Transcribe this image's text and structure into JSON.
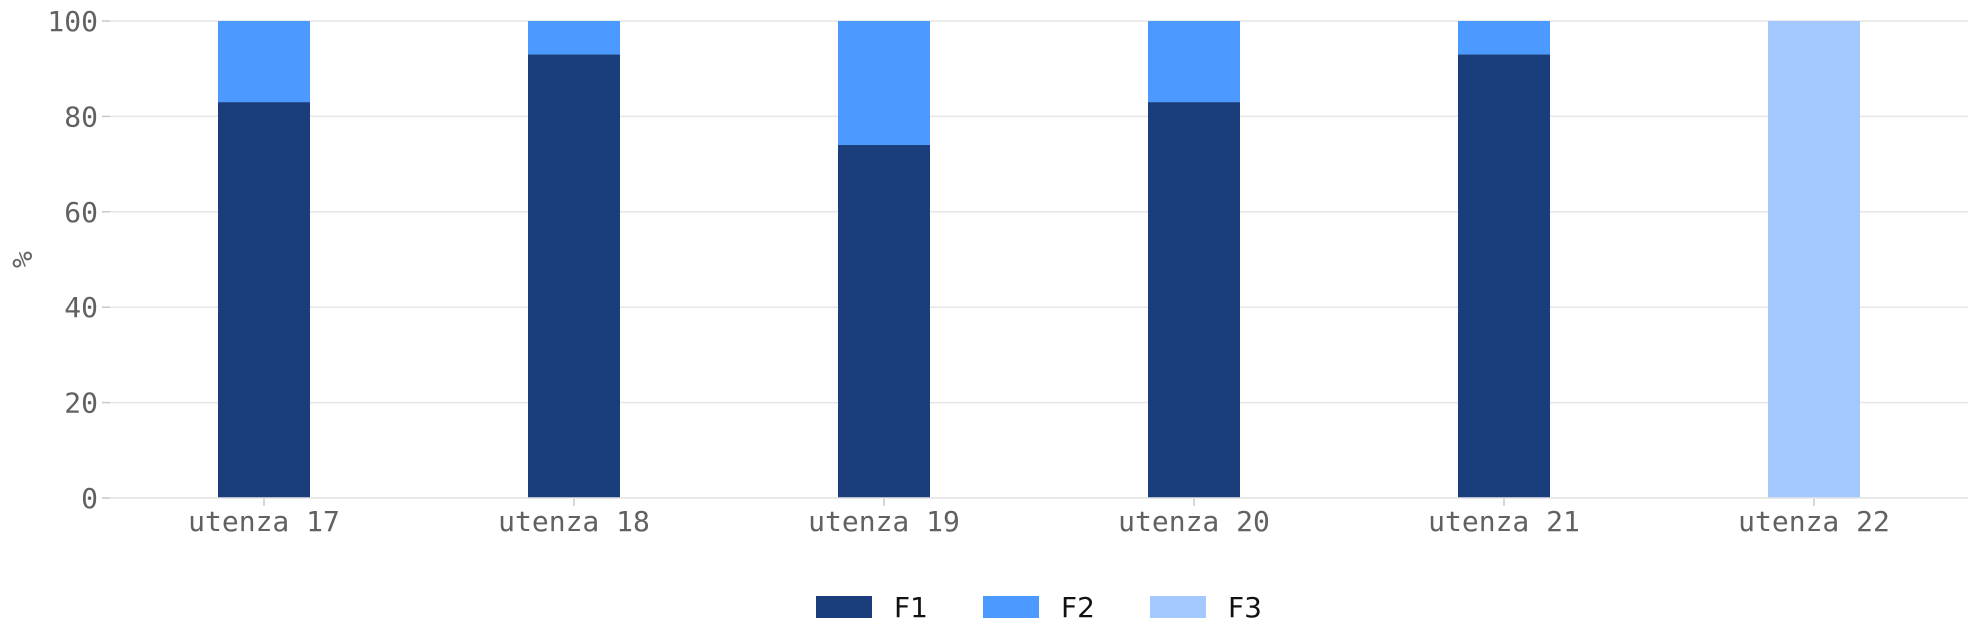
{
  "chart_data": {
    "type": "bar",
    "stacked": true,
    "categories": [
      "utenza 17",
      "utenza 18",
      "utenza 19",
      "utenza 20",
      "utenza 21",
      "utenza 22"
    ],
    "series": [
      {
        "name": "F1",
        "color": "#1a3d7c",
        "values": [
          83,
          93,
          74,
          83,
          93,
          0
        ]
      },
      {
        "name": "F2",
        "color": "#4c9aff",
        "values": [
          17,
          7,
          26,
          17,
          7,
          0
        ]
      },
      {
        "name": "F3",
        "color": "#a3c8ff",
        "values": [
          0,
          0,
          0,
          0,
          0,
          100
        ]
      }
    ],
    "ylabel": "%",
    "ylim": [
      0,
      100
    ],
    "yticks": [
      "0",
      "20",
      "40",
      "60",
      "80",
      "100"
    ],
    "grid": true,
    "legend_position": "bottom-center"
  }
}
